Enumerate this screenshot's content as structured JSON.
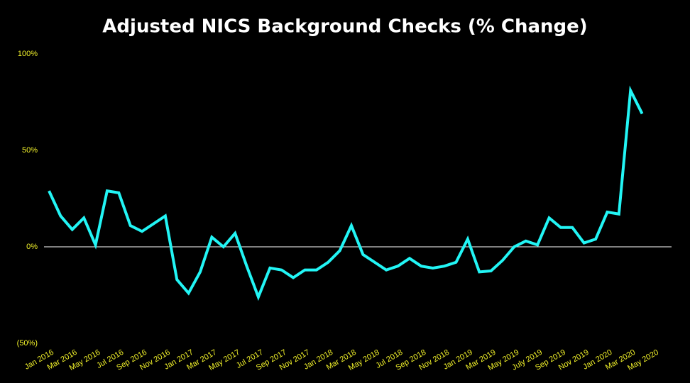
{
  "chart_data": {
    "type": "line",
    "title": "Adjusted NICS Background Checks (% Change)",
    "categories": [
      "Jan 2016",
      null,
      "Mar 2016",
      null,
      "May 2016",
      null,
      "Jul 2016",
      null,
      "Sep 2016",
      null,
      "Nov 2016",
      null,
      "Jan 2017",
      null,
      "Mar 2017",
      null,
      "May 2017",
      null,
      "Jul 2017",
      null,
      "Sep 2017",
      null,
      "Nov 2017",
      null,
      "Jan 2018",
      null,
      "Mar 2018",
      null,
      "May 2018",
      null,
      "Jul 2018",
      null,
      "Sep 2018",
      null,
      "Nov 2018",
      null,
      "Jan 2019",
      null,
      "Mar 2019",
      null,
      "May 2019",
      null,
      "July 2019",
      null,
      "Sep 2019",
      null,
      "Nov 2019",
      null,
      "Jan 2020",
      null,
      "Mar 2020",
      null,
      "May 2020"
    ],
    "series": [
      {
        "name": "Adjusted NICS Background Checks",
        "color": "#22f5f5",
        "values": [
          29,
          16,
          9,
          15,
          1,
          29,
          28,
          11,
          8,
          12,
          16,
          -17,
          -24,
          -13,
          5,
          0,
          7,
          -10,
          -26,
          -11,
          -12,
          -16,
          -12,
          -12,
          -8,
          -2,
          11,
          -4,
          -8,
          -12,
          -10,
          -6,
          -10,
          -11,
          -10,
          -8,
          4,
          -13,
          -12.5,
          -7,
          0,
          3,
          1,
          15,
          10,
          10,
          2,
          4,
          18,
          17,
          81,
          69,
          null
        ]
      }
    ],
    "ylim": [
      -50,
      100
    ],
    "yticks": [
      {
        "value": -50,
        "label": "(50%)"
      },
      {
        "value": 0,
        "label": "0%"
      },
      {
        "value": 50,
        "label": "50%"
      },
      {
        "value": 100,
        "label": "100%"
      }
    ],
    "zero_line": true,
    "tick_color": "#f2f22a"
  }
}
